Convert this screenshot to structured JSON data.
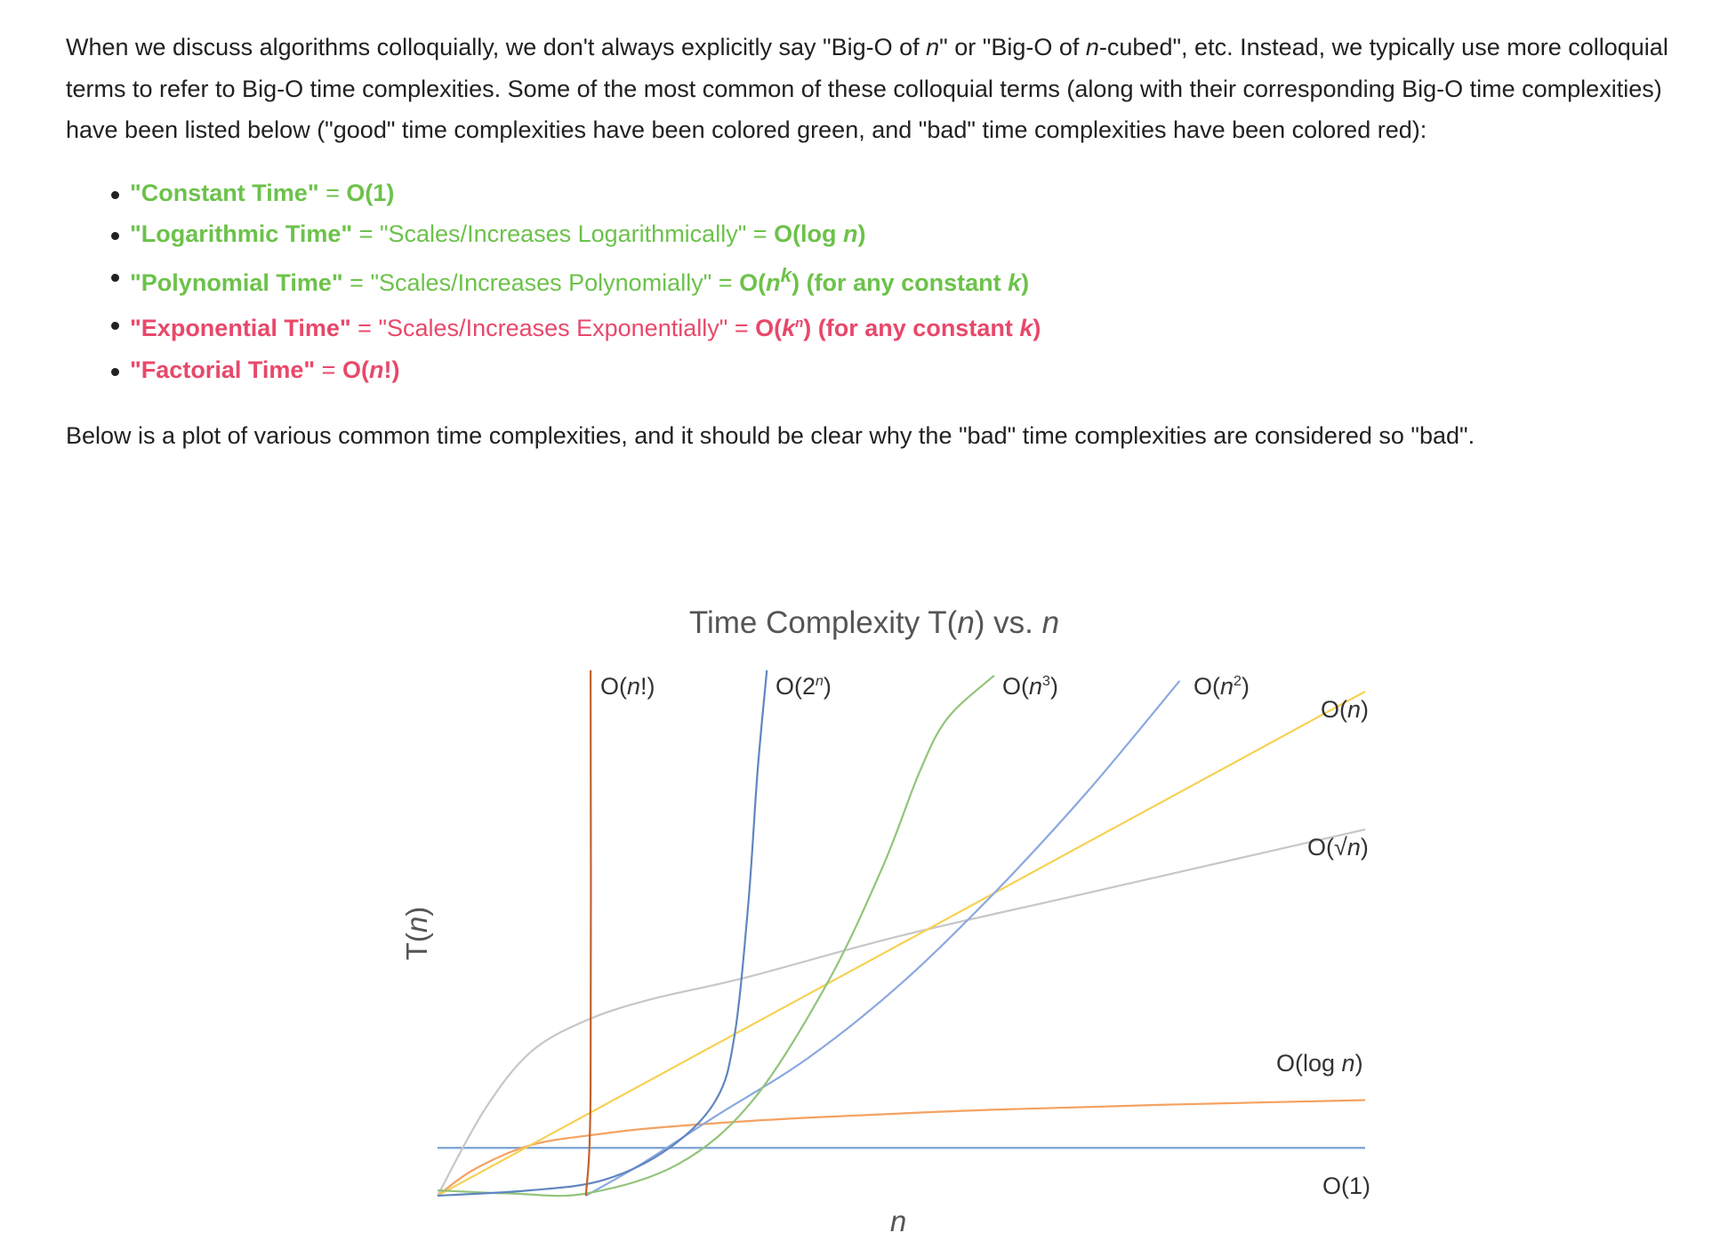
{
  "intro": {
    "p1": "When we discuss algorithms colloquially, we don't always explicitly say \"Big-O of ",
    "p1_var": "n",
    "p2": "\" or \"Big-O of ",
    "p2_var": "n",
    "p3": "-cubed\", etc. Instead, we typically use more colloquial terms to refer to Big-O time complexities. Some of the most common of these colloquial terms (along with their corresponding Big-O time complexities) have been listed below (\"good\" time complexities have been colored green, and \"bad\" time complexities have been colored red):"
  },
  "terms": {
    "constant": {
      "name": "\"Constant Time\"",
      "eq": " = ",
      "big_o": "O(1)"
    },
    "logarithmic": {
      "name": "\"Logarithmic Time\"",
      "eq1": " = ",
      "desc": "\"Scales/Increases Logarithmically\"",
      "eq2": " = ",
      "big_o": "O(log ",
      "var": "n",
      "close": ")"
    },
    "polynomial": {
      "name": "\"Polynomial Time\"",
      "eq1": " = ",
      "desc": "\"Scales/Increases Polynomially\"",
      "eq2": " = ",
      "big_o": "O(",
      "base": "n",
      "exp": "k",
      "close": ")",
      "note": " (for any constant ",
      "note_var": "k",
      "note_close": ")"
    },
    "exponential": {
      "name": "\"Exponential Time\"",
      "eq1": " = ",
      "desc": "\"Scales/Increases Exponentially\"",
      "eq2": " = ",
      "big_o": "O(",
      "base": "k",
      "exp": "n",
      "close": ")",
      "note": " (for any constant ",
      "note_var": "k",
      "note_close": ")"
    },
    "factorial": {
      "name": "\"Factorial Time\"",
      "eq": " = ",
      "big_o": "O(",
      "var": "n",
      "close": "!)"
    }
  },
  "outro": "Below is a plot of various common time complexities, and it should be clear why the \"bad\" time complexities are considered so \"bad\".",
  "colors": {
    "good": "#6cc24a",
    "bad": "#e8486a",
    "o1": "#7aa1d2",
    "ologn": "#f4a261",
    "osqrtn": "#c7c7c7",
    "on": "#f7d154",
    "on2": "#8aa8e0",
    "on3": "#92c47a",
    "o2n": "#5f86c0",
    "onfact": "#c0622f"
  },
  "chart_data": {
    "type": "line",
    "title": "Time Complexity T(n) vs. n",
    "xlabel": "n",
    "ylabel": "T(n)",
    "series": [
      {
        "name": "O(1)",
        "color": "#7aa1d2",
        "x": [
          0,
          1
        ],
        "y": [
          0.09,
          0.09
        ]
      },
      {
        "name": "O(log n)",
        "color": "#f4a261",
        "x": [
          0,
          0.04,
          0.1,
          0.17,
          0.25,
          0.4,
          0.6,
          0.8,
          1.0
        ],
        "y": [
          0,
          0.05,
          0.095,
          0.115,
          0.13,
          0.147,
          0.162,
          0.172,
          0.18
        ]
      },
      {
        "name": "O(√n)",
        "color": "#c7c7c7",
        "x": [
          0,
          0.05,
          0.1,
          0.16,
          0.23,
          0.33,
          0.5,
          0.7,
          1.0
        ],
        "y": [
          0,
          0.16,
          0.27,
          0.33,
          0.37,
          0.41,
          0.49,
          0.57,
          0.69
        ]
      },
      {
        "name": "O(n)",
        "color": "#f7d154",
        "x": [
          0,
          1
        ],
        "y": [
          0,
          0.95
        ]
      },
      {
        "name": "O(n²)",
        "color": "#8aa8e0",
        "x": [
          0.16,
          0.22,
          0.3,
          0.4,
          0.5,
          0.6,
          0.7,
          0.8
        ],
        "y": [
          0,
          0.06,
          0.15,
          0.26,
          0.4,
          0.57,
          0.76,
          0.97
        ]
      },
      {
        "name": "O(n³)",
        "color": "#92c47a",
        "x": [
          0,
          0.08,
          0.16,
          0.26,
          0.34,
          0.42,
          0.48,
          0.52,
          0.55,
          0.6
        ],
        "y": [
          0.01,
          0.004,
          0.004,
          0.06,
          0.18,
          0.4,
          0.62,
          0.8,
          0.9,
          0.98
        ]
      },
      {
        "name": "O(2ⁿ)",
        "color": "#5f86c0",
        "x": [
          0,
          0.1,
          0.18,
          0.25,
          0.3,
          0.32,
          0.335,
          0.345,
          0.355
        ],
        "y": [
          0,
          0.01,
          0.03,
          0.09,
          0.18,
          0.3,
          0.55,
          0.8,
          0.99
        ]
      },
      {
        "name": "O(n!)",
        "color": "#c0622f",
        "x": [
          0.16,
          0.165,
          0.165
        ],
        "y": [
          0,
          0.2,
          0.99
        ]
      }
    ],
    "legend_labels": {
      "onfact": {
        "pre": "O(",
        "var": "n",
        "post": "!)"
      },
      "o2n": {
        "pre": "O(2",
        "sup": "n",
        "post": ")"
      },
      "on3": {
        "pre": "O(",
        "var": "n",
        "sup": "3",
        "post": ")"
      },
      "on2": {
        "pre": "O(",
        "var": "n",
        "sup": "2",
        "post": ")"
      },
      "on": {
        "pre": "O(",
        "var": "n",
        "post": ")"
      },
      "osqrtn": {
        "pre": "O(√",
        "var": "n",
        "post": ")"
      },
      "ologn": {
        "pre": "O(log ",
        "var": "n",
        "post": ")"
      },
      "o1": {
        "pre": "O(1)"
      }
    },
    "title_parts": {
      "pre": "Time Complexity T(",
      "var": "n",
      "mid": ") vs. ",
      "var2": "n"
    },
    "ylabel_parts": {
      "pre": "T(",
      "var": "n",
      "post": ")"
    },
    "grid": false
  }
}
